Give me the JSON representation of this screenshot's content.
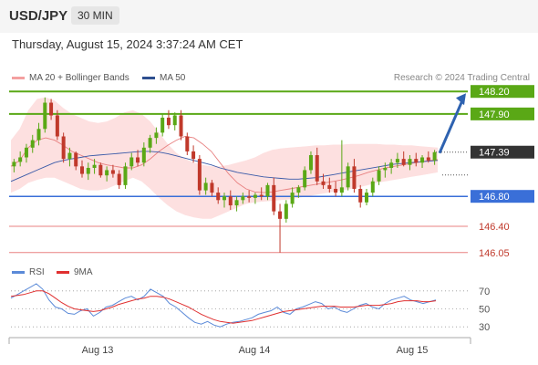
{
  "header": {
    "symbol": "USD/JPY",
    "interval": "30 MIN",
    "datetime": "Thursday, August 15, 2024 3:37:24 AM CET"
  },
  "legend": {
    "ma20_label": "MA 20 + Bollinger Bands",
    "ma50_label": "MA 50",
    "rsi_label": "RSI",
    "rsi_ma_label": "9MA",
    "credit": "Research © 2024 Trading Central"
  },
  "colors": {
    "resistance": "#5aa816",
    "pivot": "#3a6fd8",
    "support": "#e88080",
    "current": "#333333",
    "bull": "#5aa816",
    "bear": "#c0392b",
    "band_fill": "#fde0e0",
    "ma20": "#e88080",
    "ma50": "#3a5aa8",
    "rsi": "#5b8ad8",
    "rsi_ma": "#e03030",
    "arrow": "#2e62b0"
  },
  "chart_data": [
    {
      "type": "candlestick",
      "title": "USD/JPY",
      "x_ticks": [
        "Aug 13",
        "Aug 14",
        "Aug 15"
      ],
      "ylim": [
        145.95,
        148.3
      ],
      "levels": [
        {
          "label": "148.20",
          "value": 148.2,
          "kind": "resistance"
        },
        {
          "label": "147.90",
          "value": 147.9,
          "kind": "resistance"
        },
        {
          "label": "147.39",
          "value": 147.39,
          "kind": "current"
        },
        {
          "label": "146.80",
          "value": 146.8,
          "kind": "pivot"
        },
        {
          "label": "146.40",
          "value": 146.4,
          "kind": "support"
        },
        {
          "label": "146.05",
          "value": 146.05,
          "kind": "support"
        }
      ],
      "candles": [
        [
          147.2,
          147.3,
          147.12,
          147.26
        ],
        [
          147.26,
          147.4,
          147.2,
          147.32
        ],
        [
          147.32,
          147.5,
          147.25,
          147.45
        ],
        [
          147.45,
          147.62,
          147.38,
          147.55
        ],
        [
          147.55,
          147.78,
          147.48,
          147.7
        ],
        [
          147.7,
          148.12,
          147.65,
          148.05
        ],
        [
          148.05,
          148.1,
          147.82,
          147.88
        ],
        [
          147.88,
          147.95,
          147.55,
          147.6
        ],
        [
          147.6,
          147.65,
          147.25,
          147.3
        ],
        [
          147.3,
          147.45,
          147.2,
          147.38
        ],
        [
          147.38,
          147.4,
          147.15,
          147.2
        ],
        [
          147.2,
          147.28,
          147.05,
          147.1
        ],
        [
          147.1,
          147.25,
          147.02,
          147.18
        ],
        [
          147.18,
          147.3,
          147.1,
          147.22
        ],
        [
          147.22,
          147.25,
          147.05,
          147.08
        ],
        [
          147.08,
          147.2,
          147.0,
          147.15
        ],
        [
          147.15,
          147.22,
          147.05,
          147.1
        ],
        [
          147.1,
          147.15,
          146.9,
          146.95
        ],
        [
          146.95,
          147.25,
          146.9,
          147.2
        ],
        [
          147.2,
          147.38,
          147.15,
          147.32
        ],
        [
          147.32,
          147.42,
          147.2,
          147.25
        ],
        [
          147.25,
          147.52,
          147.2,
          147.45
        ],
        [
          147.45,
          147.62,
          147.38,
          147.58
        ],
        [
          147.58,
          147.72,
          147.5,
          147.65
        ],
        [
          147.65,
          147.9,
          147.6,
          147.85
        ],
        [
          147.85,
          147.95,
          147.7,
          147.75
        ],
        [
          147.75,
          147.92,
          147.68,
          147.88
        ],
        [
          147.88,
          147.95,
          147.55,
          147.6
        ],
        [
          147.6,
          147.65,
          147.35,
          147.4
        ],
        [
          147.4,
          147.48,
          147.25,
          147.3
        ],
        [
          147.3,
          147.35,
          146.82,
          146.88
        ],
        [
          146.88,
          147.05,
          146.82,
          146.98
        ],
        [
          146.98,
          147.02,
          146.8,
          146.85
        ],
        [
          146.85,
          146.92,
          146.7,
          146.75
        ],
        [
          146.75,
          146.85,
          146.65,
          146.8
        ],
        [
          146.8,
          146.88,
          146.62,
          146.68
        ],
        [
          146.68,
          146.8,
          146.6,
          146.75
        ],
        [
          146.75,
          146.85,
          146.7,
          146.8
        ],
        [
          146.8,
          146.88,
          146.72,
          146.78
        ],
        [
          146.78,
          146.85,
          146.7,
          146.82
        ],
        [
          146.82,
          146.92,
          146.75,
          146.8
        ],
        [
          146.8,
          146.98,
          146.75,
          146.95
        ],
        [
          146.95,
          147.05,
          146.55,
          146.6
        ],
        [
          146.6,
          146.7,
          146.05,
          146.5
        ],
        [
          146.5,
          146.75,
          146.45,
          146.7
        ],
        [
          146.7,
          146.92,
          146.65,
          146.85
        ],
        [
          146.85,
          146.95,
          146.78,
          146.92
        ],
        [
          146.92,
          147.2,
          146.88,
          147.15
        ],
        [
          147.15,
          147.4,
          147.1,
          147.35
        ],
        [
          147.35,
          147.45,
          146.95,
          147.0
        ],
        [
          147.0,
          147.1,
          146.9,
          146.95
        ],
        [
          146.95,
          147.05,
          146.85,
          146.9
        ],
        [
          146.9,
          147.0,
          146.8,
          146.85
        ],
        [
          146.85,
          147.55,
          146.8,
          146.92
        ],
        [
          146.92,
          147.25,
          146.88,
          147.2
        ],
        [
          147.2,
          147.3,
          146.85,
          146.9
        ],
        [
          146.9,
          146.95,
          146.65,
          146.72
        ],
        [
          146.72,
          146.9,
          146.68,
          146.85
        ],
        [
          146.85,
          147.05,
          146.8,
          147.0
        ],
        [
          147.0,
          147.2,
          146.95,
          147.15
        ],
        [
          147.15,
          147.25,
          147.05,
          147.18
        ],
        [
          147.18,
          147.3,
          147.1,
          147.25
        ],
        [
          147.25,
          147.38,
          147.18,
          147.3
        ],
        [
          147.3,
          147.4,
          147.2,
          147.22
        ],
        [
          147.22,
          147.35,
          147.15,
          147.3
        ],
        [
          147.3,
          147.38,
          147.2,
          147.25
        ],
        [
          147.25,
          147.35,
          147.18,
          147.32
        ],
        [
          147.32,
          147.4,
          147.25,
          147.28
        ],
        [
          147.28,
          147.42,
          147.22,
          147.39
        ]
      ],
      "ma20": [
        147.2,
        147.28,
        147.45,
        147.55,
        147.58,
        147.55,
        147.48,
        147.4,
        147.35,
        147.3,
        147.25,
        147.22,
        147.2,
        147.18,
        147.18,
        147.22,
        147.3,
        147.4,
        147.48,
        147.55,
        147.6,
        147.58,
        147.5,
        147.4,
        147.25,
        147.1,
        146.98,
        146.9,
        146.86,
        146.85,
        146.86,
        146.88,
        146.9,
        146.92,
        146.94,
        146.96,
        146.98,
        147.0,
        147.02,
        147.05,
        147.08,
        147.12,
        147.15,
        147.18,
        147.2,
        147.22,
        147.24,
        147.26,
        147.28,
        147.29
      ],
      "ma50": [
        147.0,
        147.05,
        147.1,
        147.15,
        147.2,
        147.25,
        147.28,
        147.3,
        147.32,
        147.34,
        147.35,
        147.36,
        147.37,
        147.38,
        147.39,
        147.4,
        147.4,
        147.39,
        147.37,
        147.34,
        147.31,
        147.28,
        147.25,
        147.22,
        147.18,
        147.15,
        147.12,
        147.1,
        147.08,
        147.06,
        147.05,
        147.04,
        147.03,
        147.03,
        147.04,
        147.05,
        147.07,
        147.09,
        147.11,
        147.13,
        147.15,
        147.17,
        147.19,
        147.21,
        147.23,
        147.24,
        147.25,
        147.26,
        147.27,
        147.28
      ],
      "bb_upper": [
        147.55,
        147.7,
        147.95,
        148.1,
        148.12,
        148.08,
        147.98,
        147.9,
        147.85,
        147.8,
        147.78,
        147.8,
        147.85,
        147.92,
        147.95,
        147.9,
        147.8,
        147.65,
        147.5,
        147.38,
        147.3,
        147.25,
        147.22,
        147.2,
        147.2,
        147.22,
        147.25,
        147.28,
        147.32,
        147.38,
        147.42,
        147.44,
        147.45,
        147.46,
        147.47,
        147.48,
        147.48,
        147.49,
        147.49,
        147.5,
        147.5,
        147.5,
        147.5,
        147.49,
        147.49,
        147.48,
        147.48,
        147.47,
        147.46,
        147.45
      ],
      "bb_lower": [
        146.85,
        146.9,
        146.98,
        147.02,
        147.05,
        147.05,
        147.0,
        146.95,
        146.9,
        146.88,
        146.88,
        146.9,
        146.95,
        147.0,
        147.05,
        147.0,
        146.9,
        146.78,
        146.68,
        146.6,
        146.55,
        146.52,
        146.5,
        146.5,
        146.55,
        146.6,
        146.65,
        146.7,
        146.72,
        146.73,
        146.74,
        146.75,
        146.76,
        146.78,
        146.8,
        146.82,
        146.84,
        146.86,
        146.88,
        146.9,
        146.92,
        146.95,
        146.98,
        147.0,
        147.02,
        147.04,
        147.06,
        147.08,
        147.1,
        147.12
      ],
      "projection": {
        "from": 147.39,
        "to": 148.2
      }
    },
    {
      "type": "line",
      "title": "RSI",
      "ylim": [
        20,
        80
      ],
      "y_ticks": [
        "70",
        "50",
        "30"
      ],
      "series": [
        {
          "name": "RSI",
          "values": [
            62,
            66,
            70,
            74,
            78,
            72,
            60,
            52,
            50,
            45,
            44,
            48,
            50,
            42,
            46,
            52,
            54,
            58,
            62,
            64,
            60,
            64,
            72,
            68,
            64,
            56,
            52,
            46,
            40,
            35,
            33,
            36,
            32,
            30,
            33,
            35,
            36,
            38,
            40,
            44,
            46,
            48,
            52,
            46,
            44,
            50,
            52,
            55,
            58,
            56,
            50,
            52,
            48,
            46,
            50,
            54,
            56,
            52,
            50,
            56,
            60,
            62,
            64,
            60,
            58,
            56,
            58,
            60
          ]
        },
        {
          "name": "9MA",
          "values": [
            64,
            65,
            66,
            68,
            70,
            70,
            67,
            62,
            57,
            53,
            50,
            49,
            48,
            47,
            48,
            50,
            52,
            55,
            57,
            59,
            61,
            62,
            64,
            64,
            63,
            61,
            58,
            55,
            52,
            48,
            44,
            41,
            38,
            36,
            35,
            34,
            35,
            36,
            37,
            39,
            41,
            43,
            45,
            47,
            48,
            49,
            50,
            51,
            52,
            53,
            53,
            53,
            52,
            52,
            52,
            53,
            54,
            54,
            54,
            55,
            56,
            58,
            59,
            59,
            59,
            58,
            58,
            59
          ]
        }
      ]
    }
  ]
}
